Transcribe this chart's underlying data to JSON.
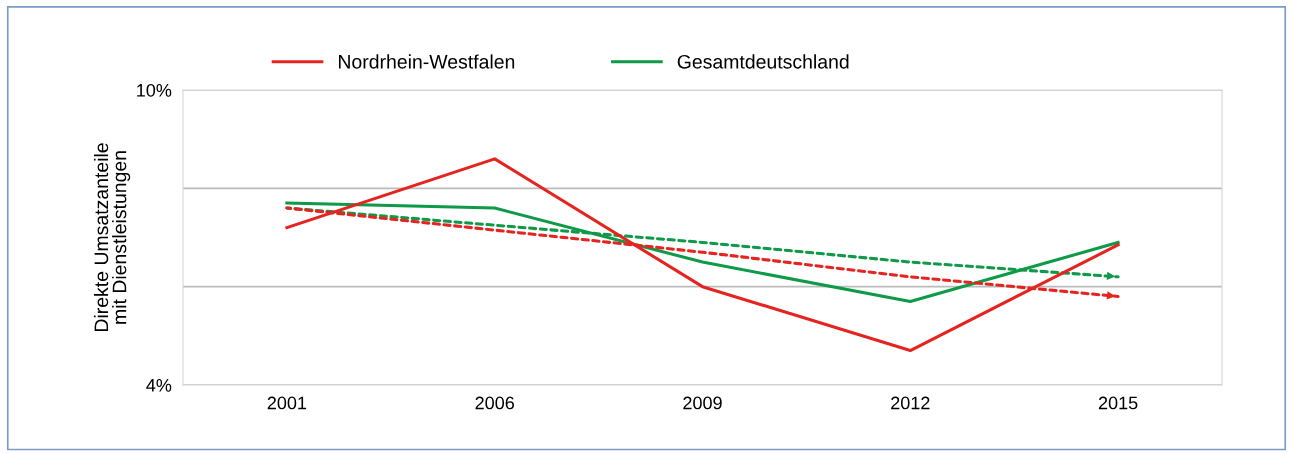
{
  "chart_data": {
    "type": "line",
    "ylabel": "Direkte Umsatzanteile\nmit Dienstleistungen",
    "categories": [
      "2001",
      "2006",
      "2009",
      "2012",
      "2015"
    ],
    "series": [
      {
        "name": "Nordrhein-Westfalen",
        "color": "#e52420",
        "values": [
          7.2,
          8.6,
          6.0,
          4.7,
          6.85
        ]
      },
      {
        "name": "Gesamtdeutschland",
        "color": "#0e9a48",
        "values": [
          7.7,
          7.6,
          6.5,
          5.7,
          6.9
        ]
      },
      {
        "color": "#e52420",
        "values": [
          7.6,
          7.15,
          6.7,
          6.2,
          5.8
        ],
        "line_style": "dashed"
      },
      {
        "color": "#0e9a48",
        "values": [
          7.6,
          7.25,
          6.9,
          6.5,
          6.2
        ],
        "line_style": "dashed"
      }
    ],
    "ylim": [
      4,
      10
    ],
    "yticks": [
      {
        "value": 4,
        "label": "4%"
      },
      {
        "value": 6,
        "label": null
      },
      {
        "value": 8,
        "label": null
      },
      {
        "value": 10,
        "label": "10%"
      }
    ],
    "grid": "y",
    "legend": "top",
    "line_style": "solid"
  }
}
